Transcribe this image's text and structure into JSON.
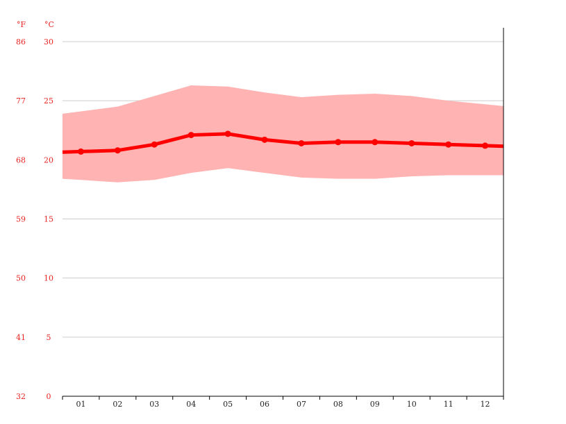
{
  "chart_data": {
    "type": "line",
    "title": "",
    "xlabel": "",
    "ylabel": "",
    "units": {
      "fahrenheit": "°F",
      "celsius": "°C"
    },
    "categories": [
      "01",
      "02",
      "03",
      "04",
      "05",
      "06",
      "07",
      "08",
      "09",
      "10",
      "11",
      "12"
    ],
    "ylim": [
      0,
      30
    ],
    "yticks_c": [
      0,
      5,
      10,
      15,
      20,
      25,
      30
    ],
    "yticks_f": [
      32,
      41,
      50,
      59,
      68,
      77,
      86
    ],
    "grid": true,
    "legend": "none",
    "colors": {
      "line": "#ff0000",
      "band": "#ffb3b3",
      "grid": "#cccccc",
      "axis": "#000000",
      "tick_text": "#e8221f"
    },
    "series": [
      {
        "values": [
          20.7,
          20.8,
          21.3,
          22.1,
          22.2,
          21.7,
          21.4,
          21.5,
          21.5,
          21.4,
          21.3,
          21.2
        ]
      },
      {
        "values": [
          24.1,
          24.5,
          25.4,
          26.3,
          26.2,
          25.7,
          25.3,
          25.5,
          25.6,
          25.4,
          25.0,
          24.7
        ]
      },
      {
        "values": [
          18.3,
          18.1,
          18.3,
          18.9,
          19.3,
          18.9,
          18.5,
          18.4,
          18.4,
          18.6,
          18.7,
          18.7
        ]
      }
    ]
  }
}
